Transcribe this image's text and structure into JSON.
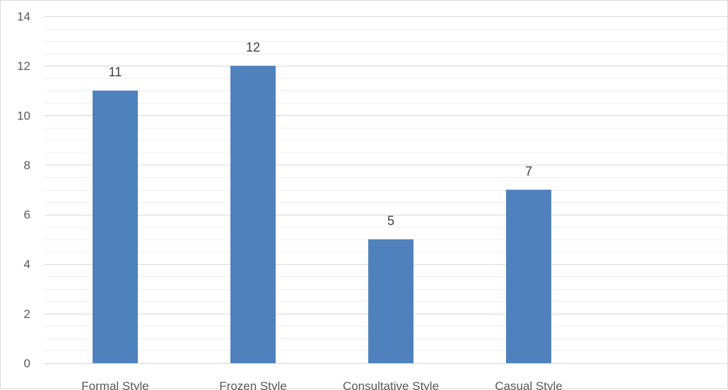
{
  "chart_data": {
    "type": "bar",
    "title": "",
    "xlabel": "",
    "ylabel": "",
    "categories": [
      "Formal Style",
      "Frozen Style",
      "Consultative Style",
      "Casual Style"
    ],
    "values": [
      11,
      12,
      5,
      7
    ],
    "data_labels": [
      "11",
      "12",
      "5",
      "7"
    ],
    "ylim": [
      0,
      14
    ],
    "y_major_step": 2,
    "y_tick_labels": [
      "0",
      "2",
      "4",
      "6",
      "8",
      "10",
      "12",
      "14"
    ],
    "grid": true,
    "minor_grid": true,
    "legend": "none",
    "colors": {
      "bar": "#4f81bd",
      "major_grid": "#d9d9d9",
      "minor_grid": "#eeeeee",
      "axis_text": "#595959",
      "data_label_text": "#404040"
    }
  }
}
